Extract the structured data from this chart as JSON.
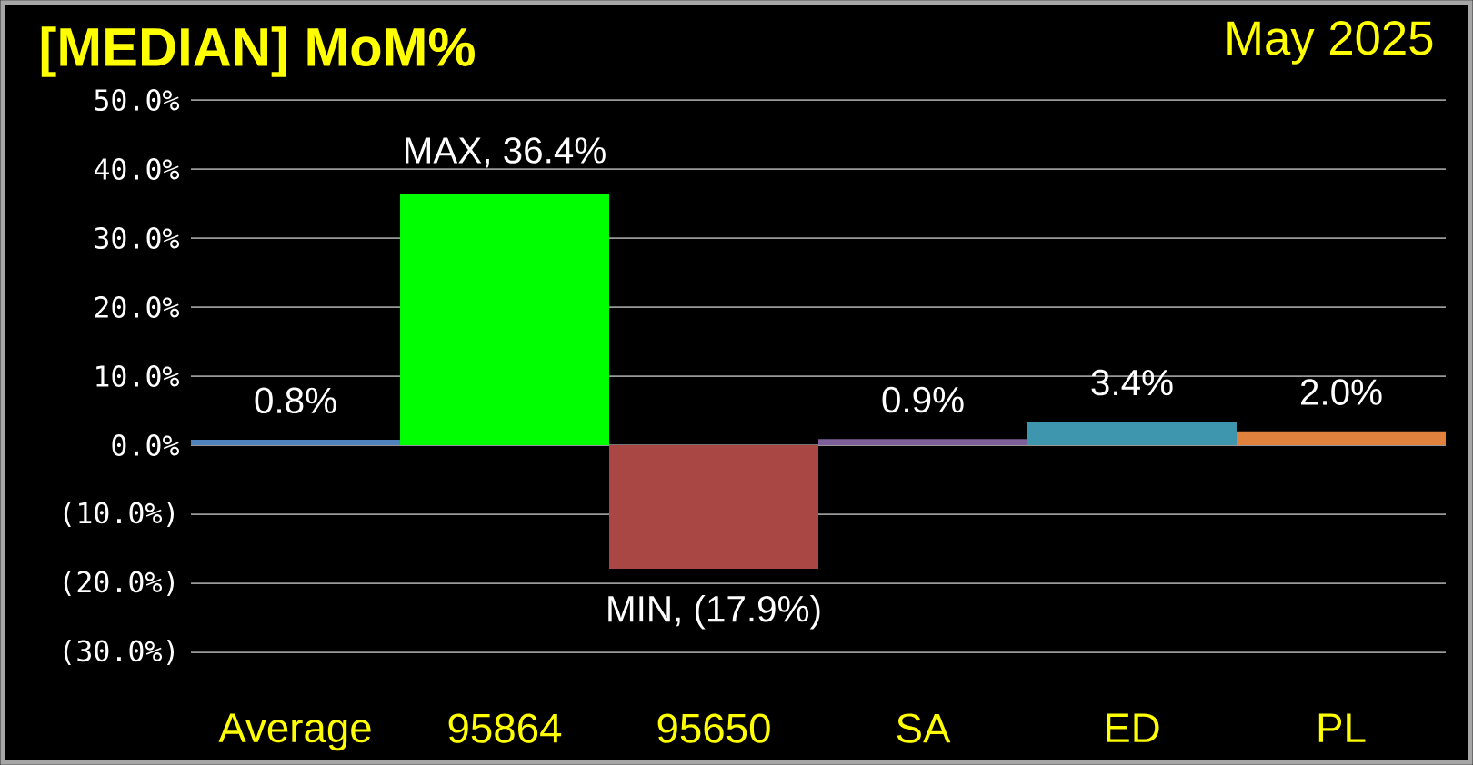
{
  "chart_data": {
    "type": "bar",
    "title": "[MEDIAN] MoM%",
    "subtitle": "May 2025",
    "categories": [
      "Average",
      "95864",
      "95650",
      "SA",
      "ED",
      "PL"
    ],
    "values": [
      0.8,
      36.4,
      -17.9,
      0.9,
      3.4,
      2.0
    ],
    "colors": [
      "#4f81bd",
      "#00ff00",
      "#a94744",
      "#7f5f9a",
      "#3e95ae",
      "#e0823d"
    ],
    "value_labels": [
      "0.8%",
      "MAX,  36.4%",
      "MIN, (17.9%)",
      "0.9%",
      "3.4%",
      "2.0%"
    ],
    "ylim": [
      -30,
      50
    ],
    "yticks": [
      {
        "value": -30,
        "label": "(30.0%)"
      },
      {
        "value": -20,
        "label": "(20.0%)"
      },
      {
        "value": -10,
        "label": "(10.0%)"
      },
      {
        "value": 0,
        "label": "0.0%"
      },
      {
        "value": 10,
        "label": "10.0%"
      },
      {
        "value": 20,
        "label": "20.0%"
      },
      {
        "value": 30,
        "label": "30.0%"
      },
      {
        "value": 40,
        "label": "40.0%"
      },
      {
        "value": 50,
        "label": "50.0%"
      }
    ],
    "grid": "y"
  }
}
